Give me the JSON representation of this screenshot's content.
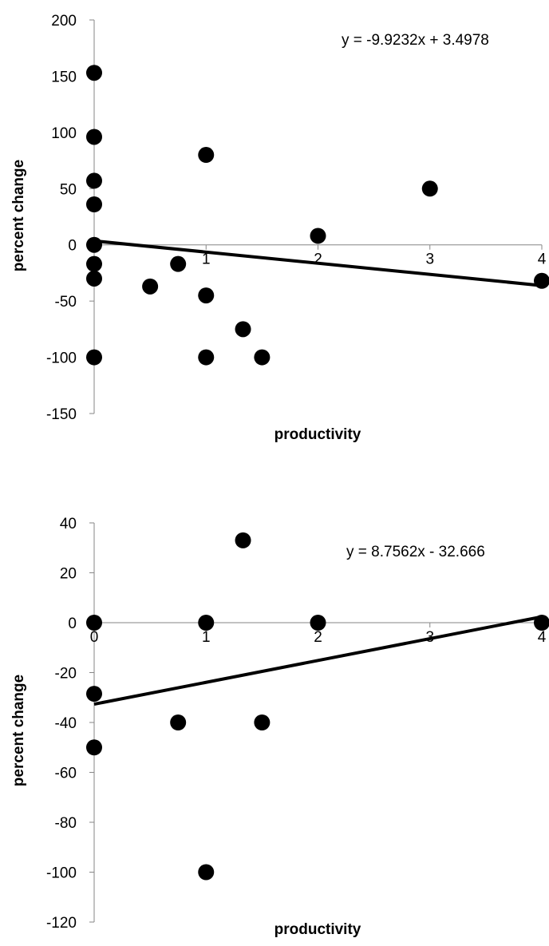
{
  "chart_data": [
    {
      "type": "scatter",
      "xlabel": "productivity",
      "ylabel": "percent change",
      "xlim": [
        0,
        4
      ],
      "ylim": [
        -150,
        200
      ],
      "x_ticks": [
        1,
        2,
        3,
        4
      ],
      "y_ticks": [
        200,
        150,
        100,
        50,
        0,
        -50,
        -100,
        -150
      ],
      "points": [
        {
          "x": 0,
          "y": 153
        },
        {
          "x": 0,
          "y": 96
        },
        {
          "x": 0,
          "y": 57
        },
        {
          "x": 0,
          "y": 36
        },
        {
          "x": 0,
          "y": 0
        },
        {
          "x": 0,
          "y": -17
        },
        {
          "x": 0,
          "y": -30
        },
        {
          "x": 0,
          "y": -100
        },
        {
          "x": 0.5,
          "y": -37
        },
        {
          "x": 0.75,
          "y": -17
        },
        {
          "x": 1,
          "y": 80
        },
        {
          "x": 1,
          "y": -45
        },
        {
          "x": 1,
          "y": -100
        },
        {
          "x": 1.33,
          "y": -75
        },
        {
          "x": 1.5,
          "y": -100
        },
        {
          "x": 2,
          "y": 8
        },
        {
          "x": 3,
          "y": 50
        },
        {
          "x": 4,
          "y": -32
        }
      ],
      "trendline": {
        "slope": -9.9232,
        "intercept": 3.4978,
        "equation": "y = -9.9232x + 3.4978"
      }
    },
    {
      "type": "scatter",
      "xlabel": "productivity",
      "ylabel": "percent change",
      "xlim": [
        0,
        4
      ],
      "ylim": [
        -120,
        40
      ],
      "x_ticks": [
        0,
        1,
        2,
        3,
        4
      ],
      "y_ticks": [
        40,
        20,
        0,
        -20,
        -40,
        -60,
        -80,
        -100,
        -120
      ],
      "points": [
        {
          "x": 0,
          "y": 0
        },
        {
          "x": 0,
          "y": -28.5
        },
        {
          "x": 0,
          "y": -50
        },
        {
          "x": 0.75,
          "y": -40
        },
        {
          "x": 1,
          "y": 0
        },
        {
          "x": 1,
          "y": -100
        },
        {
          "x": 1.33,
          "y": 33
        },
        {
          "x": 1.5,
          "y": -40
        },
        {
          "x": 2,
          "y": 0
        },
        {
          "x": 4,
          "y": 0
        }
      ],
      "trendline": {
        "slope": 8.7562,
        "intercept": -32.666,
        "equation": "y = 8.7562x - 32.666"
      }
    }
  ]
}
